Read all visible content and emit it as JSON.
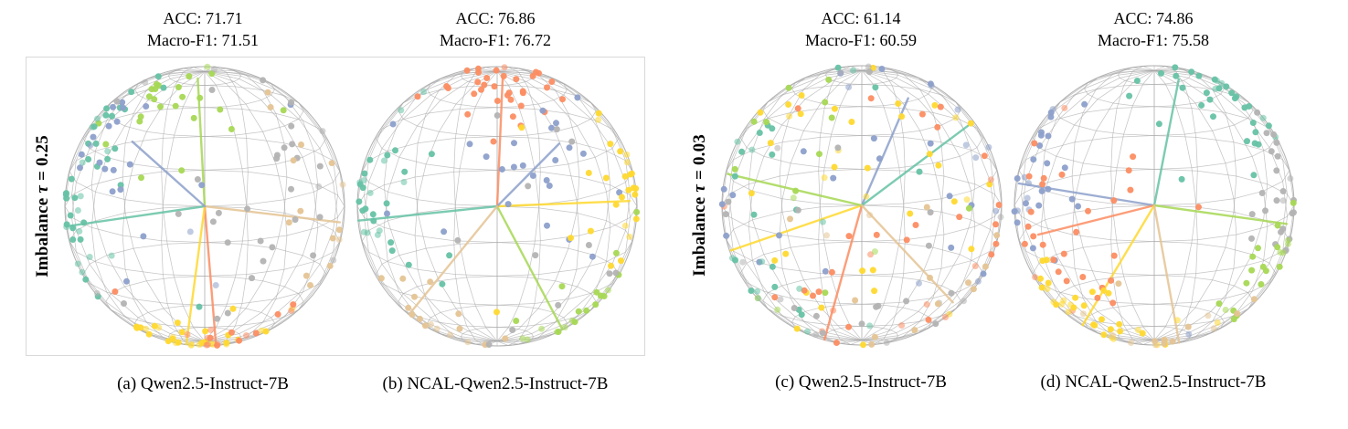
{
  "figure": {
    "groups": [
      {
        "row_label": {
          "prefix": "Imbalance ",
          "tau": "τ",
          "rest": " = 0.25"
        },
        "panels": [
          {
            "metrics": {
              "acc": "ACC: 71.71",
              "f1": "Macro-F1: 71.51"
            },
            "caption": "(a) Qwen2.5-Instruct-7B"
          },
          {
            "metrics": {
              "acc": "ACC: 76.86",
              "f1": "Macro-F1: 76.72"
            },
            "caption": "(b) NCAL-Qwen2.5-Instruct-7B"
          }
        ]
      },
      {
        "row_label": {
          "prefix": "Imbalance ",
          "tau": "τ",
          "rest": " = 0.03"
        },
        "panels": [
          {
            "metrics": {
              "acc": "ACC: 61.14",
              "f1": "Macro-F1: 60.59"
            },
            "caption": "(c) Qwen2.5-Instruct-7B"
          },
          {
            "metrics": {
              "acc": "ACC: 74.86",
              "f1": "Macro-F1: 75.58"
            },
            "caption": "(d) NCAL-Qwen2.5-Instruct-7B"
          }
        ]
      }
    ]
  },
  "palette": {
    "teal_green": "#66c2a5",
    "orange": "#fc8d62",
    "blue": "#8da0cb",
    "light_green": "#a6d854",
    "yellow": "#ffd92f",
    "tan": "#e5c494",
    "gray": "#b3b3b3",
    "wireframe": "#a8a8a8"
  },
  "chart_data": [
    {
      "type": "scatter",
      "subtype": "3d-unit-sphere-embedding",
      "panel": "a",
      "model": "Qwen2.5-Instruct-7B",
      "imbalance_tau": 0.25,
      "acc": 71.71,
      "macro_f1": 71.51,
      "svg_id": "sphere-a",
      "seed": 7,
      "view_elevation_deg": 15,
      "wireframe": {
        "meridians": 20,
        "parallels": 11,
        "color": "#a8a8a8"
      },
      "prototypes": [
        {
          "color": "#a6d854",
          "dir": [
            0.15,
            -0.05,
            1
          ]
        },
        {
          "color": "#66c2a5",
          "dir": [
            0.1,
            -0.98,
            -0.12
          ]
        },
        {
          "color": "#fc8d62",
          "dir": [
            0.25,
            0.08,
            -0.95
          ]
        },
        {
          "color": "#ffd92f",
          "dir": [
            0.3,
            -0.12,
            -0.85
          ]
        },
        {
          "color": "#e5c494",
          "dir": [
            0.25,
            0.95,
            -0.05
          ]
        },
        {
          "color": "#8da0cb",
          "dir": [
            0.5,
            -0.45,
            0.55
          ]
        }
      ],
      "clusters": [
        {
          "color": "#a6d854",
          "n": 24,
          "dir": [
            0.3,
            -0.2,
            0.95
          ],
          "spread": 0.3
        },
        {
          "color": "#66c2a5",
          "n": 16,
          "dir": [
            0.25,
            -0.6,
            0.7
          ],
          "spread": 0.35
        },
        {
          "color": "#66c2a5",
          "n": 26,
          "dir": [
            0.15,
            -0.95,
            -0.05
          ],
          "spread": 0.4
        },
        {
          "color": "#8da0cb",
          "n": 22,
          "dir": [
            0.45,
            -0.5,
            0.5
          ],
          "spread": 0.45
        },
        {
          "color": "#b3b3b3",
          "n": 34,
          "dir": [
            0.55,
            0.35,
            0.25
          ],
          "spread": 0.75
        },
        {
          "color": "#ffd92f",
          "n": 30,
          "dir": [
            0.3,
            -0.05,
            -0.95
          ],
          "spread": 0.28
        },
        {
          "color": "#fc8d62",
          "n": 16,
          "dir": [
            0.5,
            0.1,
            -0.75
          ],
          "spread": 0.35
        },
        {
          "color": "#e5c494",
          "n": 14,
          "dir": [
            0.35,
            0.9,
            -0.15
          ],
          "spread": 0.4
        }
      ]
    },
    {
      "type": "scatter",
      "subtype": "3d-unit-sphere-embedding",
      "panel": "b",
      "model": "NCAL-Qwen2.5-Instruct-7B",
      "imbalance_tau": 0.25,
      "acc": 76.86,
      "macro_f1": 76.72,
      "svg_id": "sphere-b",
      "seed": 13,
      "view_elevation_deg": 15,
      "wireframe": {
        "meridians": 20,
        "parallels": 11,
        "color": "#a8a8a8"
      },
      "prototypes": [
        {
          "color": "#fc8d62",
          "dir": [
            0.12,
            0.04,
            1
          ]
        },
        {
          "color": "#66c2a5",
          "dir": [
            0.1,
            -1,
            -0.08
          ]
        },
        {
          "color": "#a6d854",
          "dir": [
            0.3,
            0.45,
            -0.8
          ]
        },
        {
          "color": "#ffd92f",
          "dir": [
            0.3,
            0.95,
            0.12
          ]
        },
        {
          "color": "#8da0cb",
          "dir": [
            0.5,
            0.35,
            0.5
          ]
        },
        {
          "color": "#e5c494",
          "dir": [
            0.3,
            -0.55,
            -0.62
          ]
        }
      ],
      "clusters": [
        {
          "color": "#fc8d62",
          "n": 34,
          "dir": [
            0.2,
            0.05,
            0.97
          ],
          "spread": 0.33
        },
        {
          "color": "#66c2a5",
          "n": 30,
          "dir": [
            0.15,
            -0.92,
            0.1
          ],
          "spread": 0.45
        },
        {
          "color": "#8da0cb",
          "n": 24,
          "dir": [
            0.55,
            0.25,
            0.35
          ],
          "spread": 0.4
        },
        {
          "color": "#ffd92f",
          "n": 26,
          "dir": [
            0.3,
            0.9,
            0.1
          ],
          "spread": 0.4
        },
        {
          "color": "#e5c494",
          "n": 16,
          "dir": [
            0.3,
            -0.5,
            -0.65
          ],
          "spread": 0.38
        },
        {
          "color": "#a6d854",
          "n": 20,
          "dir": [
            0.3,
            0.5,
            -0.75
          ],
          "spread": 0.33
        },
        {
          "color": "#b3b3b3",
          "n": 12,
          "dir": [
            0.7,
            0.1,
            -0.1
          ],
          "spread": 0.85
        }
      ]
    },
    {
      "type": "scatter",
      "subtype": "3d-unit-sphere-embedding",
      "panel": "c",
      "model": "Qwen2.5-Instruct-7B",
      "imbalance_tau": 0.03,
      "acc": 61.14,
      "macro_f1": 60.59,
      "svg_id": "sphere-c",
      "seed": 29,
      "view_elevation_deg": 15,
      "wireframe": {
        "meridians": 20,
        "parallels": 11,
        "color": "#a8a8a8"
      },
      "prototypes": [
        {
          "color": "#8da0cb",
          "dir": [
            0.3,
            0.3,
            0.8
          ]
        },
        {
          "color": "#66c2a5",
          "dir": [
            0.15,
            0.72,
            0.6
          ]
        },
        {
          "color": "#ffd92f",
          "dir": [
            0.2,
            -0.85,
            -0.25
          ]
        },
        {
          "color": "#fc8d62",
          "dir": [
            0.3,
            -0.25,
            -0.85
          ]
        },
        {
          "color": "#a6d854",
          "dir": [
            0.1,
            -0.92,
            0.25
          ]
        },
        {
          "color": "#e5c494",
          "dir": [
            0.4,
            0.55,
            -0.5
          ]
        }
      ],
      "clusters": [
        {
          "color": "#ffd92f",
          "n": 38,
          "dir": [
            0.3,
            0.0,
            0.15
          ],
          "spread": 1.2
        },
        {
          "color": "#fc8d62",
          "n": 32,
          "dir": [
            0.3,
            0.15,
            -0.2
          ],
          "spread": 1.15
        },
        {
          "color": "#8da0cb",
          "n": 28,
          "dir": [
            0.35,
            0.3,
            0.45
          ],
          "spread": 1.0
        },
        {
          "color": "#66c2a5",
          "n": 28,
          "dir": [
            0.2,
            -0.5,
            0.1
          ],
          "spread": 1.1
        },
        {
          "color": "#b3b3b3",
          "n": 26,
          "dir": [
            0.35,
            0.05,
            -0.35
          ],
          "spread": 1.2
        },
        {
          "color": "#a6d854",
          "n": 14,
          "dir": [
            0.2,
            -0.35,
            0.5
          ],
          "spread": 0.9
        },
        {
          "color": "#e5c494",
          "n": 14,
          "dir": [
            0.3,
            0.5,
            -0.45
          ],
          "spread": 1.0
        }
      ]
    },
    {
      "type": "scatter",
      "subtype": "3d-unit-sphere-embedding",
      "panel": "d",
      "model": "NCAL-Qwen2.5-Instruct-7B",
      "imbalance_tau": 0.03,
      "acc": 74.86,
      "macro_f1": 75.58,
      "svg_id": "sphere-d",
      "seed": 42,
      "view_elevation_deg": 15,
      "wireframe": {
        "meridians": 20,
        "parallels": 11,
        "color": "#a8a8a8"
      },
      "prototypes": [
        {
          "color": "#66c2a5",
          "dir": [
            0.15,
            0.18,
            1
          ]
        },
        {
          "color": "#8da0cb",
          "dir": [
            0.15,
            -0.95,
            0.2
          ]
        },
        {
          "color": "#fc8d62",
          "dir": [
            0.4,
            -0.6,
            -0.05
          ]
        },
        {
          "color": "#ffd92f",
          "dir": [
            0.25,
            -0.5,
            -0.8
          ]
        },
        {
          "color": "#a6d854",
          "dir": [
            0.3,
            0.9,
            -0.05
          ]
        },
        {
          "color": "#e5c494",
          "dir": [
            0.3,
            0.18,
            -0.95
          ]
        }
      ],
      "clusters": [
        {
          "color": "#66c2a5",
          "n": 34,
          "dir": [
            0.2,
            0.5,
            0.8
          ],
          "spread": 0.33
        },
        {
          "color": "#b3b3b3",
          "n": 24,
          "dir": [
            0.25,
            0.95,
            0.1
          ],
          "spread": 0.28
        },
        {
          "color": "#8da0cb",
          "n": 28,
          "dir": [
            0.2,
            -0.85,
            0.35
          ],
          "spread": 0.4
        },
        {
          "color": "#fc8d62",
          "n": 30,
          "dir": [
            0.5,
            -0.35,
            0.05
          ],
          "spread": 0.5
        },
        {
          "color": "#ffd92f",
          "n": 34,
          "dir": [
            0.25,
            -0.5,
            -0.78
          ],
          "spread": 0.33
        },
        {
          "color": "#a6d854",
          "n": 20,
          "dir": [
            0.3,
            0.8,
            -0.35
          ],
          "spread": 0.33
        },
        {
          "color": "#e5c494",
          "n": 14,
          "dir": [
            0.3,
            0.05,
            -0.92
          ],
          "spread": 0.38
        }
      ]
    }
  ]
}
